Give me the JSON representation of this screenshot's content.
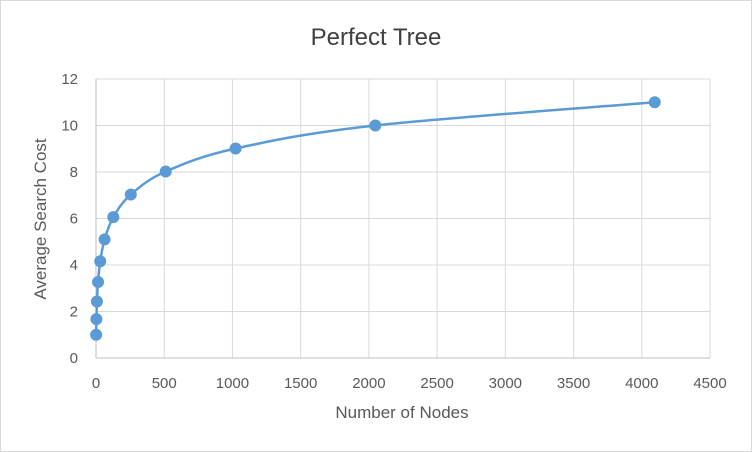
{
  "chart_data": {
    "type": "scatter",
    "title": "Perfect Tree",
    "xlabel": "Number of Nodes",
    "ylabel": "Average Search Cost",
    "xlim": [
      0,
      4500
    ],
    "ylim": [
      0,
      12
    ],
    "x_ticks": [
      "0",
      "500",
      "1000",
      "1500",
      "2000",
      "2500",
      "3000",
      "3500",
      "4000",
      "4500"
    ],
    "y_ticks": [
      "0",
      "2",
      "4",
      "6",
      "8",
      "10",
      "12"
    ],
    "grid": true,
    "legend": "none",
    "smooth_line": true,
    "color": "#5b9bd5",
    "series": [
      {
        "x": [
          1,
          3,
          7,
          15,
          31,
          63,
          127,
          255,
          511,
          1023,
          2047,
          4095
        ],
        "y": [
          1,
          1.67,
          2.43,
          3.27,
          4.16,
          5.1,
          6.06,
          7.03,
          8.02,
          9.01,
          10.0,
          11.0
        ]
      }
    ]
  }
}
